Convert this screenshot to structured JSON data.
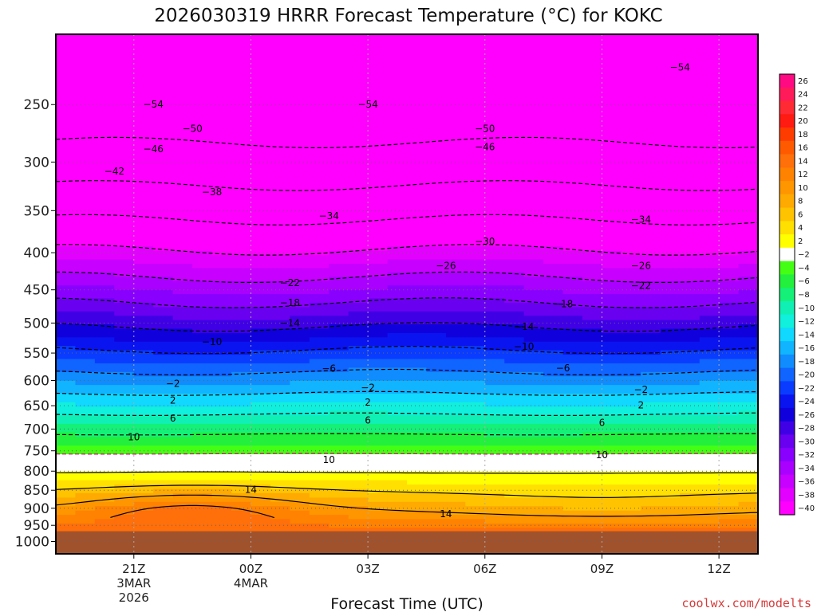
{
  "title": "2026030319 HRRR Forecast Temperature (°C) for KOKC",
  "credit": "coolwx.com/modelts",
  "chart_data": {
    "type": "heatmap",
    "title": "2026030319 HRRR Forecast Temperature (°C) for KOKC",
    "xlabel": "Forecast Time (UTC)",
    "ylabel": "",
    "x_range_hours": [
      -2,
      16
    ],
    "x_ticks": [
      {
        "hour": 0,
        "label": "21Z",
        "sub": [
          "3MAR",
          "2026"
        ]
      },
      {
        "hour": 3,
        "label": "00Z",
        "sub": [
          "4MAR"
        ]
      },
      {
        "hour": 6,
        "label": "03Z",
        "sub": []
      },
      {
        "hour": 9,
        "label": "06Z",
        "sub": []
      },
      {
        "hour": 12,
        "label": "09Z",
        "sub": []
      },
      {
        "hour": 15,
        "label": "12Z",
        "sub": []
      }
    ],
    "y_axis": "pressure (hPa), log scale",
    "y_range_hpa": [
      200,
      1040
    ],
    "y_ticks": [
      250,
      300,
      350,
      400,
      450,
      500,
      550,
      600,
      650,
      700,
      750,
      800,
      850,
      900,
      950,
      1000
    ],
    "surface_pressure_hpa": 968,
    "colorbar": {
      "levels": [
        26,
        24,
        22,
        20,
        18,
        16,
        14,
        12,
        10,
        8,
        6,
        4,
        2,
        -2,
        -4,
        -6,
        -8,
        -10,
        -12,
        -14,
        -16,
        -18,
        -20,
        -22,
        -24,
        -26,
        -28,
        -30,
        -32,
        -34,
        -36,
        -38,
        -40
      ],
      "colors": [
        "#ff0a82",
        "#ff1a5a",
        "#ff2a34",
        "#ff1a12",
        "#ff3c00",
        "#ff5a00",
        "#ff6f0a",
        "#ff8200",
        "#ff9600",
        "#ffaa00",
        "#ffc300",
        "#ffe000",
        "#ffff00",
        "#ffffff",
        "#44ff14",
        "#22f03c",
        "#14f078",
        "#10f0b4",
        "#10f0dc",
        "#10d8ff",
        "#10b4ff",
        "#108cff",
        "#1064ff",
        "#0a3cff",
        "#0a14f0",
        "#1000dc",
        "#4000e6",
        "#6a00f0",
        "#8a00ff",
        "#aa00ff",
        "#c800ff",
        "#e400ff",
        "#ff00ff"
      ]
    },
    "contour_labels": [
      {
        "value": -54,
        "hour": 0.5,
        "p": 250
      },
      {
        "value": -54,
        "hour": 6.0,
        "p": 250
      },
      {
        "value": -54,
        "hour": 14.0,
        "p": 222
      },
      {
        "value": -50,
        "hour": 1.5,
        "p": 270
      },
      {
        "value": -50,
        "hour": 9.0,
        "p": 270
      },
      {
        "value": -46,
        "hour": 0.5,
        "p": 288
      },
      {
        "value": -46,
        "hour": 9.0,
        "p": 286
      },
      {
        "value": -42,
        "hour": -0.5,
        "p": 309
      },
      {
        "value": -38,
        "hour": 2.0,
        "p": 330
      },
      {
        "value": -34,
        "hour": 5.0,
        "p": 356
      },
      {
        "value": -34,
        "hour": 13.0,
        "p": 360
      },
      {
        "value": -30,
        "hour": 9.0,
        "p": 386
      },
      {
        "value": -26,
        "hour": 8.0,
        "p": 417
      },
      {
        "value": -26,
        "hour": 13.0,
        "p": 417
      },
      {
        "value": -22,
        "hour": 4.0,
        "p": 440
      },
      {
        "value": -22,
        "hour": 13.0,
        "p": 444
      },
      {
        "value": -18,
        "hour": 4.0,
        "p": 469
      },
      {
        "value": -18,
        "hour": 11.0,
        "p": 471
      },
      {
        "value": -14,
        "hour": 4.0,
        "p": 500
      },
      {
        "value": -14,
        "hour": 10.0,
        "p": 506
      },
      {
        "value": -10,
        "hour": 2.0,
        "p": 531
      },
      {
        "value": -10,
        "hour": 10.0,
        "p": 539
      },
      {
        "value": -6,
        "hour": 5.0,
        "p": 578
      },
      {
        "value": -6,
        "hour": 11.0,
        "p": 577
      },
      {
        "value": -2,
        "hour": 1.0,
        "p": 606
      },
      {
        "value": -2,
        "hour": 6.0,
        "p": 614
      },
      {
        "value": -2,
        "hour": 13.0,
        "p": 618
      },
      {
        "value": 2,
        "hour": 1.0,
        "p": 639
      },
      {
        "value": 2,
        "hour": 6.0,
        "p": 643
      },
      {
        "value": 2,
        "hour": 13.0,
        "p": 649
      },
      {
        "value": 6,
        "hour": 1.0,
        "p": 677
      },
      {
        "value": 6,
        "hour": 6.0,
        "p": 681
      },
      {
        "value": 6,
        "hour": 12.0,
        "p": 686
      },
      {
        "value": 10,
        "hour": 0,
        "p": 718
      },
      {
        "value": 10,
        "hour": 5.0,
        "p": 772
      },
      {
        "value": 10,
        "hour": 12.0,
        "p": 760
      },
      {
        "value": 14,
        "hour": 3.0,
        "p": 848
      },
      {
        "value": 14,
        "hour": 8.0,
        "p": 916
      }
    ]
  }
}
